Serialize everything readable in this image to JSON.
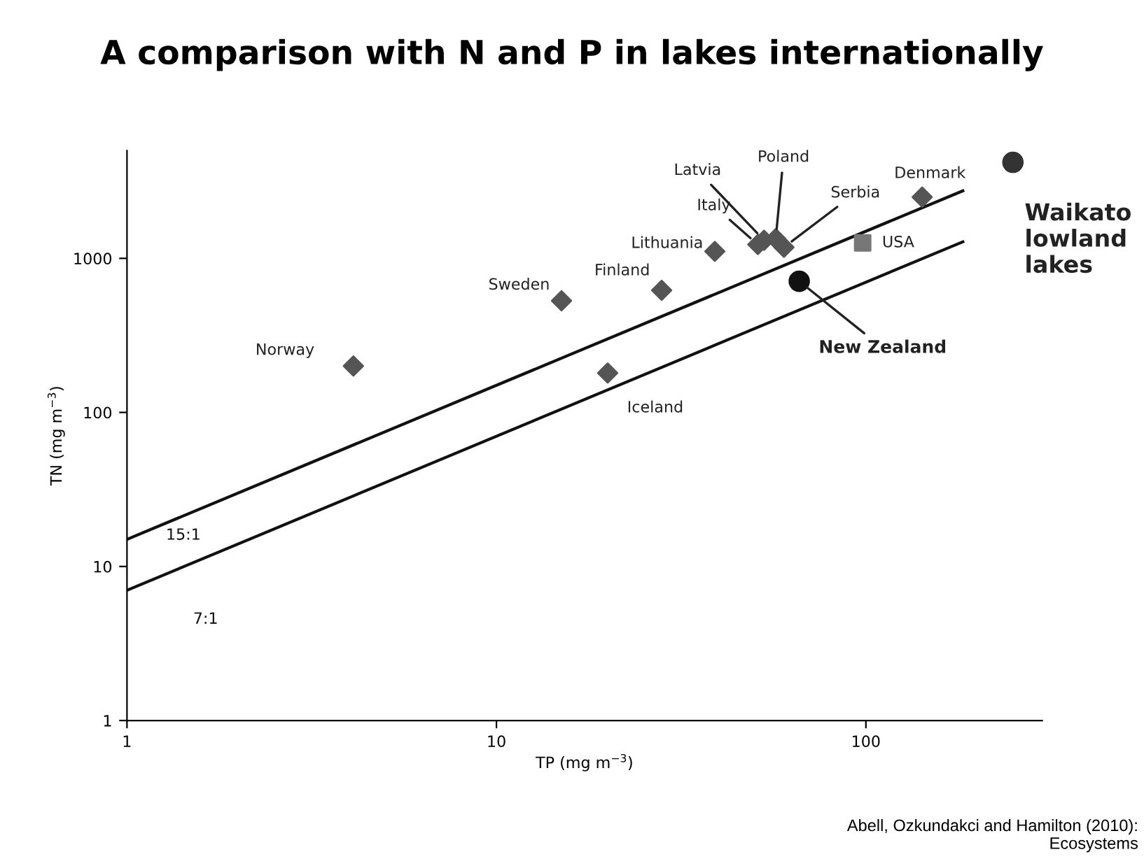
{
  "chart_data": {
    "type": "scatter",
    "title": "A comparison with N and P in lakes internationally",
    "xlabel": "TP (mg m$^{−3}$)",
    "ylabel": "TN (mg m$^{−3}$)",
    "log": "xy",
    "xlim": [
      1,
      300
    ],
    "ylim": [
      1,
      5000
    ],
    "xticks": [
      1,
      10,
      100
    ],
    "yticks": [
      1,
      10,
      100,
      1000
    ],
    "grid": false,
    "legend": false,
    "series": [
      {
        "type": "line",
        "name": "15:1",
        "color": "#111111",
        "x": [
          1,
          183
        ],
        "values": [
          15,
          2745
        ],
        "marker": "none",
        "line_style": "solid"
      },
      {
        "type": "line",
        "name": "7:1",
        "color": "#111111",
        "x": [
          1,
          183
        ],
        "values": [
          7,
          1281
        ],
        "marker": "none",
        "line_style": "solid"
      },
      {
        "type": "scatter",
        "color": "#555555",
        "marker": "diamond",
        "x": [
          4.1,
          15,
          28,
          20,
          39,
          51,
          53,
          57,
          60,
          142
        ],
        "values": [
          200,
          530,
          620,
          180,
          1110,
          1230,
          1310,
          1340,
          1180,
          2500
        ]
      },
      {
        "type": "scatter",
        "color": "#777777",
        "marker": "square",
        "x": [
          98
        ],
        "values": [
          1260
        ]
      },
      {
        "type": "scatter",
        "color": "#111111",
        "marker": "circle",
        "x": [
          66
        ],
        "values": [
          710
        ]
      },
      {
        "type": "scatter",
        "color": "#333333",
        "marker": "circle",
        "x": [
          250
        ],
        "values": [
          4200
        ]
      }
    ],
    "annotations": [
      {
        "text": "Norway",
        "x": 4.1,
        "y": 200
      },
      {
        "text": "Sweden",
        "x": 15,
        "y": 530
      },
      {
        "text": "Finland",
        "x": 28,
        "y": 620
      },
      {
        "text": "Iceland",
        "x": 20,
        "y": 180
      },
      {
        "text": "Lithuania",
        "x": 39,
        "y": 1110
      },
      {
        "text": "Italy",
        "x": 51,
        "y": 1230
      },
      {
        "text": "Latvia",
        "x": 53,
        "y": 1310
      },
      {
        "text": "Poland",
        "x": 57,
        "y": 1340
      },
      {
        "text": "Serbia",
        "x": 60,
        "y": 1180
      },
      {
        "text": "Denmark",
        "x": 142,
        "y": 2500
      },
      {
        "text": "USA",
        "x": 98,
        "y": 1260
      },
      {
        "text": "New Zealand",
        "x": 66,
        "y": 710
      },
      {
        "text": "Waikato\nlowland\nlakes",
        "x": 250,
        "y": 4200
      },
      "Abell, Ozkundakci and Hamilton (2010):\nEcosystems"
    ]
  }
}
